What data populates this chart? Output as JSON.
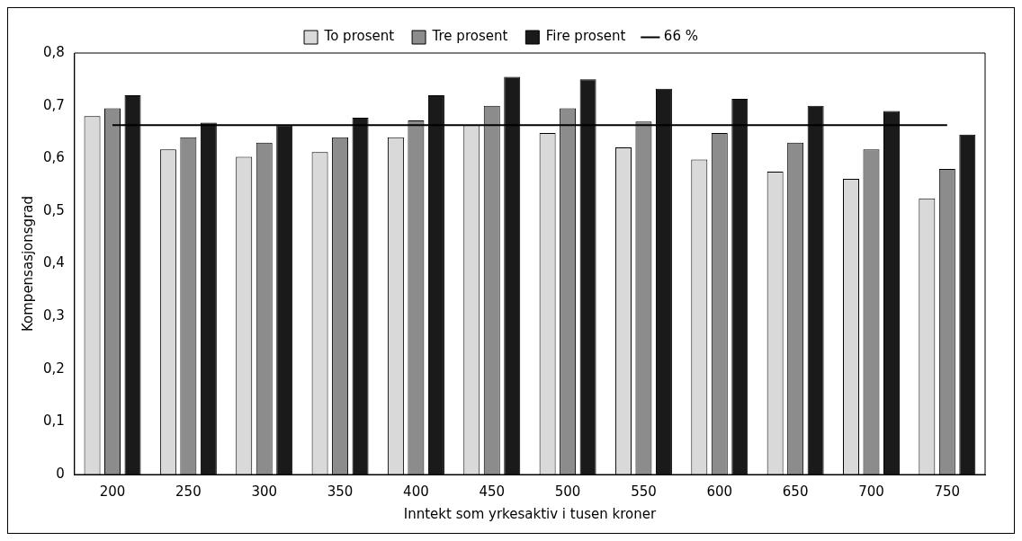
{
  "chart_data": {
    "type": "bar",
    "xlabel": "Inntekt som yrkesaktiv i tusen kroner",
    "ylabel": "Kompensasjonsgrad",
    "categories": [
      "200",
      "250",
      "300",
      "350",
      "400",
      "450",
      "500",
      "550",
      "600",
      "650",
      "700",
      "750"
    ],
    "series": [
      {
        "name": "To prosent",
        "color": "#d9d9d9",
        "values": [
          0.68,
          0.617,
          0.603,
          0.612,
          0.64,
          0.663,
          0.648,
          0.621,
          0.598,
          0.575,
          0.561,
          0.524
        ]
      },
      {
        "name": "Tre prosent",
        "color": "#8c8c8c",
        "values": [
          0.695,
          0.64,
          0.63,
          0.64,
          0.672,
          0.7,
          0.695,
          0.67,
          0.648,
          0.63,
          0.617,
          0.58
        ]
      },
      {
        "name": "Fire prosent",
        "color": "#1a1a1a",
        "values": [
          0.72,
          0.668,
          0.663,
          0.677,
          0.72,
          0.755,
          0.75,
          0.732,
          0.713,
          0.7,
          0.69,
          0.645
        ]
      },
      {
        "name": "66 %",
        "type": "line",
        "color": "#000000",
        "marker": "none",
        "values": [
          0.663,
          0.663,
          0.663,
          0.663,
          0.663,
          0.663,
          0.663,
          0.663,
          0.663,
          0.663,
          0.663,
          0.663
        ]
      }
    ],
    "ylim": [
      0,
      0.8
    ],
    "yticks": [
      0,
      {
        "value": 0.1,
        "label": "0,1"
      },
      {
        "value": 0.2,
        "label": "0,2"
      },
      {
        "value": 0.3,
        "label": "0,3"
      },
      {
        "value": 0.4,
        "label": "0,4"
      },
      {
        "value": 0.5,
        "label": "0,5"
      },
      {
        "value": 0.6,
        "label": "0,6"
      },
      {
        "value": 0.7,
        "label": "0,7"
      },
      {
        "value": 0.8,
        "label": "0,8"
      }
    ],
    "grid": false,
    "legend": "top"
  }
}
